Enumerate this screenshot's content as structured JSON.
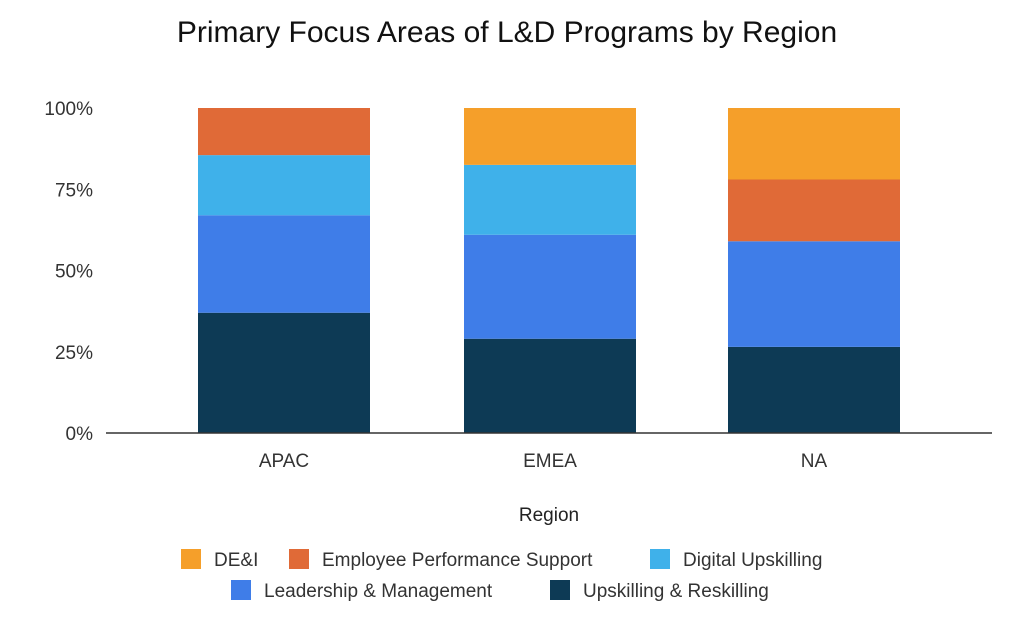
{
  "chart_data": {
    "type": "bar",
    "stacked": true,
    "normalized": true,
    "title": "Primary Focus Areas of L&D Programs by Region",
    "xlabel": "Region",
    "ylabel": "",
    "ylim": [
      0,
      100
    ],
    "yticks": [
      "0%",
      "25%",
      "50%",
      "75%",
      "100%"
    ],
    "categories": [
      "APAC",
      "EMEA",
      "NA"
    ],
    "legend_position": "bottom",
    "series": [
      {
        "name": "Upskilling & Reskilling",
        "color": "#0d3a55",
        "values": [
          37,
          29,
          26.5
        ]
      },
      {
        "name": "Leadership & Management",
        "color": "#3f7de8",
        "values": [
          30,
          32,
          32.5
        ]
      },
      {
        "name": "Digital Upskilling",
        "color": "#3fb1ea",
        "values": [
          18.5,
          21.5,
          0
        ]
      },
      {
        "name": "Employee Performance Support",
        "color": "#e06a37",
        "values": [
          14.5,
          0,
          19
        ]
      },
      {
        "name": "DE&I",
        "color": "#f59f2a",
        "values": [
          0,
          17.5,
          22
        ]
      }
    ],
    "legend_order": [
      "DE&I",
      "Employee Performance Support",
      "Digital Upskilling",
      "Leadership & Management",
      "Upskilling & Reskilling"
    ]
  }
}
